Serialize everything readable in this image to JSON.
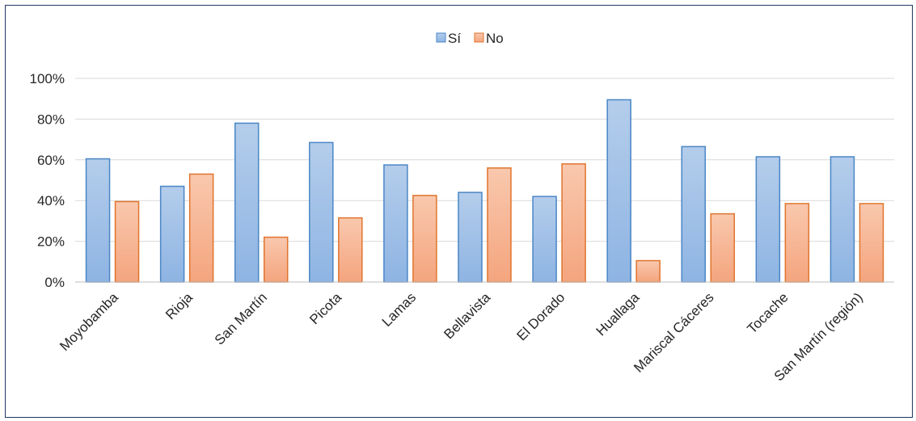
{
  "chart_data": {
    "type": "bar",
    "categories": [
      "Moyobamba",
      "Rioja",
      "San Martín",
      "Picota",
      "Lamas",
      "Bellavista",
      "El Dorado",
      "Huallaga",
      "Mariscal Cáceres",
      "Tocache",
      "San Martín (región)"
    ],
    "series": [
      {
        "name": "Sí",
        "values": [
          60.5,
          47,
          78,
          68.5,
          57.5,
          44,
          42,
          89.5,
          66.5,
          61.5,
          61.5
        ],
        "color": "#5b9bd5"
      },
      {
        "name": "No",
        "values": [
          39.5,
          53,
          22,
          31.5,
          42.5,
          56,
          58,
          10.5,
          33.5,
          38.5,
          38.5
        ],
        "color": "#ed7d31"
      }
    ],
    "title": "",
    "xlabel": "",
    "ylabel": "",
    "ylim": [
      0,
      100
    ],
    "yticks": [
      "0%",
      "20%",
      "40%",
      "60%",
      "80%",
      "100%"
    ],
    "grid": true,
    "legend_position": "top-center"
  }
}
